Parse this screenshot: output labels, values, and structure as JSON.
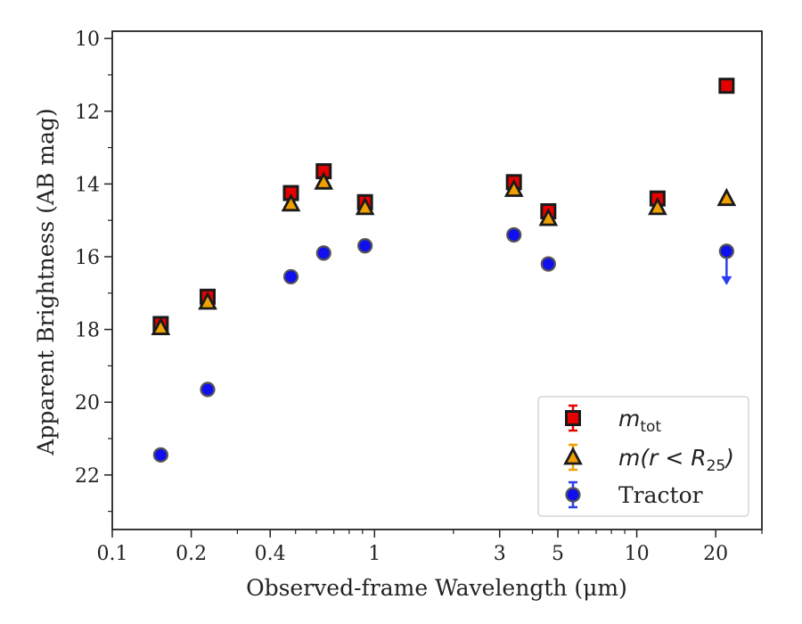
{
  "chart_data": {
    "type": "scatter",
    "xlabel": "Observed-frame Wavelength (μm)",
    "ylabel": "Apparent Brightness (AB mag)",
    "xscale": "log",
    "xlim": [
      0.1,
      30
    ],
    "ylim": [
      23.5,
      9.8
    ],
    "y_inverted": true,
    "xticks": [
      {
        "value": 0.1,
        "label": "0.1"
      },
      {
        "value": 0.2,
        "label": "0.2"
      },
      {
        "value": 0.4,
        "label": "0.4"
      },
      {
        "value": 1,
        "label": "1"
      },
      {
        "value": 3,
        "label": "3"
      },
      {
        "value": 5,
        "label": "5"
      },
      {
        "value": 10,
        "label": "10"
      },
      {
        "value": 20,
        "label": "20"
      }
    ],
    "yticks": [
      {
        "value": 10,
        "label": "10"
      },
      {
        "value": 12,
        "label": "12"
      },
      {
        "value": 14,
        "label": "14"
      },
      {
        "value": 16,
        "label": "16"
      },
      {
        "value": 18,
        "label": "18"
      },
      {
        "value": 20,
        "label": "20"
      },
      {
        "value": 22,
        "label": "22"
      }
    ],
    "grid": false,
    "legend_position": "lower-right",
    "series": [
      {
        "name": "m_tot",
        "marker": "square",
        "color": "#e60000",
        "edge": "#1a1a1a",
        "x": [
          0.153,
          0.231,
          0.48,
          0.64,
          0.92,
          3.4,
          4.6,
          12.0,
          22.0
        ],
        "y": [
          17.85,
          17.1,
          14.25,
          13.65,
          14.5,
          13.95,
          14.75,
          14.4,
          11.3
        ]
      },
      {
        "name": "m(r < R25)",
        "marker": "triangle",
        "color": "#f0a000",
        "edge": "#1a1a1a",
        "x": [
          0.153,
          0.231,
          0.48,
          0.64,
          0.92,
          3.4,
          4.6,
          12.0,
          22.0
        ],
        "y": [
          17.95,
          17.25,
          14.55,
          13.95,
          14.65,
          14.15,
          14.95,
          14.65,
          14.4
        ]
      },
      {
        "name": "Tractor",
        "marker": "circle",
        "color": "#1010ee",
        "edge": "#555555",
        "x": [
          0.153,
          0.231,
          0.48,
          0.64,
          0.92,
          3.4,
          4.6,
          22.0
        ],
        "y": [
          21.45,
          19.65,
          16.55,
          15.9,
          15.7,
          15.4,
          16.2,
          15.85
        ],
        "upper_limit_x": 22.0
      }
    ],
    "legend": [
      {
        "label_main": "m",
        "label_sub": "tot",
        "marker": "square"
      },
      {
        "label_main": "m(r < R",
        "label_sub": "25",
        "label_end": ")",
        "marker": "triangle"
      },
      {
        "label_main": "Tractor",
        "marker": "circle"
      }
    ]
  }
}
